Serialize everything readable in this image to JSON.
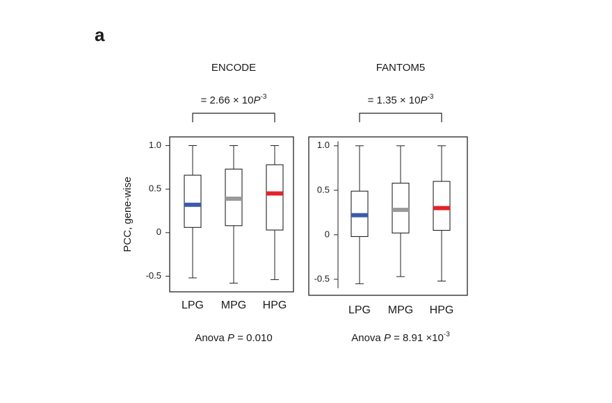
{
  "panel_label": "a",
  "chart_data": [
    {
      "type": "box",
      "title": "ENCODE",
      "y_label": "PCC, gene-wise",
      "annotation": {
        "italic": "P",
        "text": " = 2.66 × 10",
        "exponent": "-3"
      },
      "footer": {
        "text": "Anova ",
        "italic": "P",
        "rest": " = 0.010"
      },
      "categories": [
        "LPG",
        "MPG",
        "HPG"
      ],
      "stats": {
        "whislo": [
          -0.52,
          -0.58,
          -0.54
        ],
        "q1": [
          0.06,
          0.08,
          0.03
        ],
        "med": [
          0.32,
          0.39,
          0.45
        ],
        "q3": [
          0.66,
          0.73,
          0.78
        ],
        "whishi": [
          1.0,
          1.0,
          1.0
        ]
      },
      "median_colors": [
        "#3a5ba9",
        "#9a9a9a",
        "#e3222b"
      ],
      "ylim": [
        -0.68,
        1.1
      ],
      "yticks": [
        -0.5,
        0,
        0.5,
        {
          "value": 1,
          "label": "1.0"
        }
      ]
    },
    {
      "type": "box",
      "title": "FANTOM5",
      "annotation": {
        "italic": "P",
        "text": " = 1.35 × 10",
        "exponent": "-3"
      },
      "footer": {
        "text": "Anova ",
        "italic": "P",
        "rest": " = 8.91 ×10",
        "exponent": "-3"
      },
      "categories": [
        "LPG",
        "MPG",
        "HPG"
      ],
      "stats": {
        "whislo": [
          -0.55,
          -0.47,
          -0.52
        ],
        "q1": [
          -0.02,
          0.02,
          0.05
        ],
        "med": [
          0.22,
          0.28,
          0.3
        ],
        "q3": [
          0.49,
          0.58,
          0.6
        ],
        "whishi": [
          1.0,
          1.0,
          1.0
        ]
      },
      "median_colors": [
        "#3a5ba9",
        "#9a9a9a",
        "#e3222b"
      ],
      "ylim": [
        -0.68,
        1.1
      ],
      "yticks": [
        -0.5,
        0,
        0.5,
        {
          "value": 1,
          "label": "1.0"
        }
      ]
    }
  ]
}
